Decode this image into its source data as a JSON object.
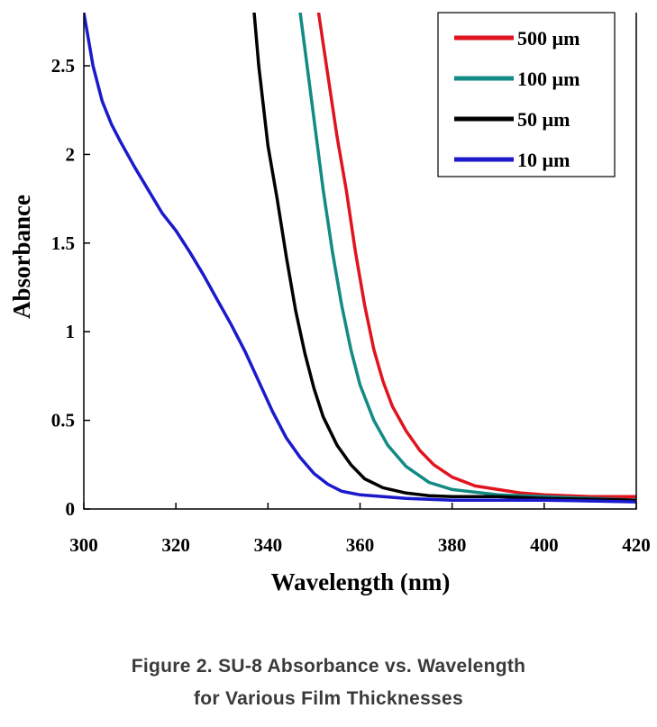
{
  "chart_data": {
    "type": "line",
    "xlabel": "Wavelength (nm)",
    "ylabel": "Absorbance",
    "xlim": [
      300,
      420
    ],
    "ylim": [
      0,
      2.8
    ],
    "xticks": [
      300,
      320,
      340,
      360,
      380,
      400,
      420
    ],
    "yticks": [
      0,
      0.5,
      1,
      1.5,
      2,
      2.5
    ],
    "ytick_labels": [
      "0",
      "0.5",
      "1",
      "1.5",
      "2",
      "2.5"
    ],
    "grid": false,
    "legend_position": "top-right",
    "series": [
      {
        "name": "500 µm",
        "color": "#e0141e",
        "x": [
          351,
          353,
          355,
          357,
          359,
          361,
          363,
          365,
          367,
          370,
          373,
          376,
          380,
          385,
          390,
          395,
          400,
          410,
          420
        ],
        "y": [
          2.8,
          2.45,
          2.1,
          1.8,
          1.45,
          1.15,
          0.9,
          0.72,
          0.58,
          0.44,
          0.33,
          0.25,
          0.18,
          0.13,
          0.11,
          0.09,
          0.08,
          0.07,
          0.07
        ]
      },
      {
        "name": "100 µm",
        "color": "#138a84",
        "x": [
          347,
          348,
          350,
          352,
          354,
          356,
          358,
          360,
          363,
          366,
          370,
          375,
          380,
          390,
          400,
          420
        ],
        "y": [
          2.8,
          2.6,
          2.2,
          1.8,
          1.45,
          1.15,
          0.9,
          0.7,
          0.5,
          0.36,
          0.24,
          0.15,
          0.11,
          0.08,
          0.07,
          0.05
        ]
      },
      {
        "name": "50 µm",
        "color": "#000000",
        "x": [
          337,
          338,
          340,
          342,
          344,
          346,
          348,
          350,
          352,
          355,
          358,
          361,
          365,
          370,
          375,
          380,
          390,
          400,
          420
        ],
        "y": [
          2.8,
          2.5,
          2.05,
          1.75,
          1.42,
          1.12,
          0.88,
          0.68,
          0.52,
          0.36,
          0.25,
          0.17,
          0.12,
          0.09,
          0.075,
          0.07,
          0.07,
          0.06,
          0.05
        ]
      },
      {
        "name": "10 µm",
        "color": "#1a1acc",
        "x": [
          300,
          302,
          304,
          306,
          308,
          311,
          314,
          317,
          320,
          323,
          326,
          329,
          332,
          335,
          338,
          341,
          344,
          347,
          350,
          353,
          356,
          360,
          365,
          370,
          380,
          390,
          400,
          420
        ],
        "y": [
          2.8,
          2.5,
          2.3,
          2.17,
          2.07,
          1.93,
          1.8,
          1.67,
          1.57,
          1.45,
          1.32,
          1.18,
          1.04,
          0.89,
          0.72,
          0.55,
          0.4,
          0.29,
          0.2,
          0.14,
          0.1,
          0.08,
          0.07,
          0.06,
          0.05,
          0.05,
          0.05,
          0.04
        ]
      }
    ]
  },
  "caption": {
    "line1": "Figure 2. SU-8 Absorbance vs. Wavelength",
    "line2": "for Various Film Thicknesses"
  }
}
